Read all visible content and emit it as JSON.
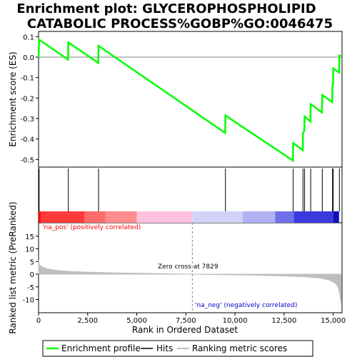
{
  "title_lines": [
    "Enrichment plot: GLYCEROPHOSPHOLIPID",
    "CATABOLIC PROCESS%GOBP%GO:0046475"
  ],
  "colors": {
    "es_line": "#00ff00",
    "hits": "#000000",
    "metric_fill": "#bebebe",
    "zero_line": "#808080",
    "pos_label": "#ff0000",
    "neg_label": "#0000cc",
    "bar_segments": [
      "#ff0000",
      "#ff3b3b",
      "#ff6b6b",
      "#ff8c8c",
      "#ffc0e0",
      "#d2d2f8",
      "#b0b0f2",
      "#7070ea",
      "#3a3adc",
      "#1010c0"
    ]
  },
  "chart_data": [
    {
      "type": "line",
      "name": "enrichment-profile",
      "ylabel": "Enrichment score (ES)",
      "xlim": [
        0,
        15450
      ],
      "ylim": [
        -0.52,
        0.11
      ],
      "yticks": [
        0.1,
        0.0,
        -0.1,
        -0.2,
        -0.3,
        -0.4,
        -0.5
      ],
      "ytick_labels": [
        "0.1",
        "0.0",
        "-0.1",
        "-0.2",
        "-0.3",
        "-0.4",
        "-0.5"
      ],
      "points": [
        [
          0,
          0.0
        ],
        [
          28,
          0.085
        ],
        [
          1502,
          -0.012
        ],
        [
          1515,
          0.072
        ],
        [
          3040,
          -0.028
        ],
        [
          3055,
          0.055
        ],
        [
          9500,
          -0.37
        ],
        [
          9515,
          -0.285
        ],
        [
          12950,
          -0.505
        ],
        [
          12965,
          -0.42
        ],
        [
          13450,
          -0.455
        ],
        [
          13465,
          -0.37
        ],
        [
          13530,
          -0.36
        ],
        [
          13545,
          -0.29
        ],
        [
          13840,
          -0.315
        ],
        [
          13855,
          -0.23
        ],
        [
          14430,
          -0.27
        ],
        [
          14445,
          -0.185
        ],
        [
          14950,
          -0.22
        ],
        [
          14965,
          -0.135
        ],
        [
          14990,
          -0.14
        ],
        [
          15005,
          -0.055
        ],
        [
          15300,
          -0.075
        ],
        [
          15315,
          0.008
        ],
        [
          15400,
          0.005
        ]
      ]
    },
    {
      "type": "scatter",
      "name": "hits",
      "hit_ranks": [
        28,
        1515,
        3055,
        9515,
        12965,
        13465,
        13545,
        13855,
        14445,
        14965,
        15005,
        15315
      ]
    },
    {
      "type": "area",
      "name": "ranking-metric",
      "xlabel": "Rank in Ordered Dataset",
      "ylabel": "Ranked list metric (PreRanked)",
      "xlim": [
        0,
        15450
      ],
      "ylim": [
        -12,
        17.5
      ],
      "yticks": [
        15,
        10,
        5,
        0,
        -5,
        -10
      ],
      "ytick_labels": [
        "15",
        "10",
        "5",
        "0",
        "-5",
        "-10"
      ],
      "xticks": [
        0,
        2500,
        5000,
        7500,
        10000,
        12500,
        15000
      ],
      "xtick_labels": [
        "0",
        "2,500",
        "5,000",
        "7,500",
        "10,000",
        "12,500",
        "15,000"
      ],
      "points": [
        [
          0,
          5.5
        ],
        [
          40,
          3.8
        ],
        [
          150,
          3.0
        ],
        [
          400,
          2.2
        ],
        [
          800,
          1.6
        ],
        [
          1500,
          1.1
        ],
        [
          2500,
          0.8
        ],
        [
          4000,
          0.5
        ],
        [
          6000,
          0.25
        ],
        [
          7829,
          0.0
        ],
        [
          9500,
          -0.2
        ],
        [
          11000,
          -0.4
        ],
        [
          12500,
          -0.7
        ],
        [
          13500,
          -1.0
        ],
        [
          14300,
          -1.5
        ],
        [
          14800,
          -2.3
        ],
        [
          15100,
          -3.5
        ],
        [
          15250,
          -5.0
        ],
        [
          15330,
          -7.5
        ],
        [
          15380,
          -10.5
        ],
        [
          15400,
          -11.2
        ]
      ],
      "zero_cross_rank": 7829
    }
  ],
  "annotations": {
    "zero_cross": "Zero cross at 7829",
    "pos_label": "'na_pos' (positively correlated)",
    "neg_label": "'na_neg' (negatively correlated)"
  },
  "legend": [
    {
      "label": "Enrichment profile",
      "color": "#00ff00"
    },
    {
      "label": "Hits",
      "color": "#000000"
    },
    {
      "label": "Ranking metric scores",
      "color": "#bebebe"
    }
  ]
}
